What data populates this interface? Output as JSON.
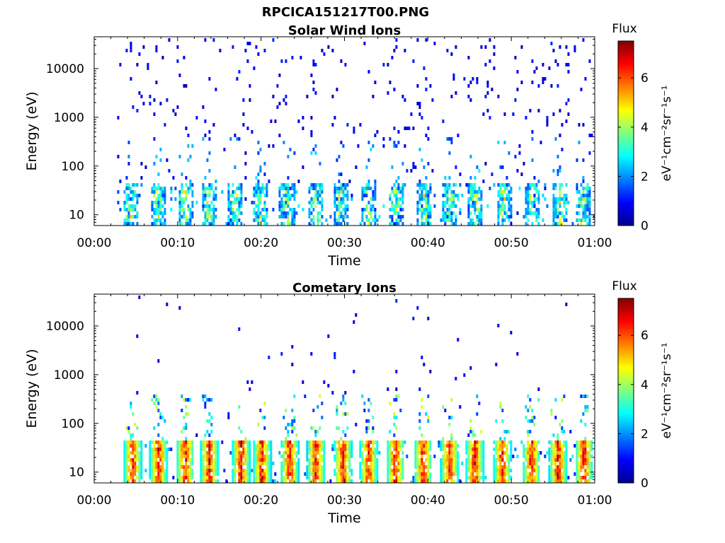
{
  "figure": {
    "main_title": "RPCICA151217T00.PNG"
  },
  "colors": {
    "colormap": "jet",
    "axis": "#000000",
    "background": "#ffffff"
  },
  "chart_data": [
    {
      "type": "heatmap",
      "title": "Solar Wind Ions",
      "xlabel": "Time",
      "ylabel": "Energy (eV)",
      "x_ticks": [
        "00:00",
        "00:10",
        "00:20",
        "00:30",
        "00:40",
        "00:50",
        "01:00"
      ],
      "x_range_minutes": [
        0,
        60
      ],
      "y_scale": "log",
      "y_range": [
        6,
        45000
      ],
      "y_ticks": [
        10,
        100,
        1000,
        10000
      ],
      "colorbar": {
        "label": "Flux",
        "units": "eV⁻¹cm⁻²sr⁻¹s⁻¹",
        "range": [
          0,
          7.5
        ],
        "ticks": [
          0,
          2,
          4,
          6
        ]
      },
      "pattern": "sparse",
      "low_energy_bursts_min": [
        4.2,
        7.5,
        10.8,
        13.6,
        16.8,
        19.8,
        23.0,
        26.5,
        29.5,
        32.8,
        36.0,
        39.5,
        42.5,
        45.6,
        49.0,
        52.5,
        55.8,
        58.5
      ],
      "data_start_min": 2.5
    },
    {
      "type": "heatmap",
      "title": "Cometary Ions",
      "xlabel": "Time",
      "ylabel": "Energy (eV)",
      "x_ticks": [
        "00:00",
        "00:10",
        "00:20",
        "00:30",
        "00:40",
        "00:50",
        "01:00"
      ],
      "x_range_minutes": [
        0,
        60
      ],
      "y_scale": "log",
      "y_range": [
        6,
        45000
      ],
      "y_ticks": [
        10,
        100,
        1000,
        10000
      ],
      "colorbar": {
        "label": "Flux",
        "units": "eV⁻¹cm⁻²sr⁻¹s⁻¹",
        "range": [
          0,
          7.5
        ],
        "ticks": [
          0,
          2,
          4,
          6
        ]
      },
      "pattern": "dense",
      "low_energy_bursts_min": [
        4.5,
        7.6,
        10.8,
        13.7,
        17.5,
        20.0,
        23.3,
        26.5,
        29.7,
        32.8,
        36.0,
        39.3,
        42.5,
        45.5,
        48.8,
        52.3,
        55.5,
        58.6
      ],
      "data_start_min": 3.0
    }
  ]
}
